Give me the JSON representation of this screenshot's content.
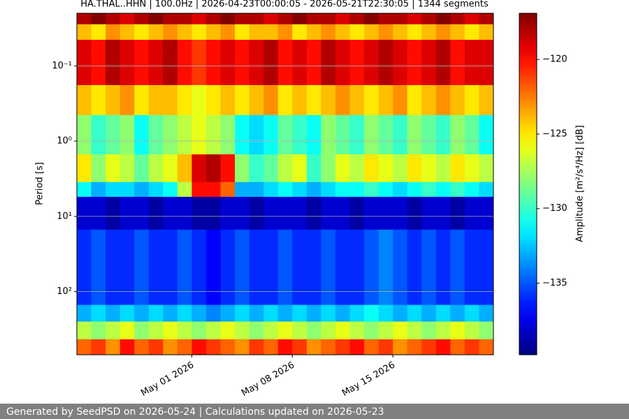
{
  "chart_data": {
    "type": "heatmap",
    "title": "HA.THAL..HHN | 100.0Hz | 2026-04-23T00:00:05 - 2026-05-21T22:30:05 | 1344 segments",
    "y_label": "Period [s]",
    "colorbar_label": "Amplitude [m²/s⁴/Hz] [dB]",
    "log_y": true,
    "y_inverted": true,
    "grid": true,
    "colormap": "jet",
    "x": [
      "2026-04-23",
      "2026-04-24",
      "2026-04-25",
      "2026-04-26",
      "2026-04-27",
      "2026-04-28",
      "2026-04-29",
      "2026-04-30",
      "2026-05-01",
      "2026-05-02",
      "2026-05-03",
      "2026-05-04",
      "2026-05-05",
      "2026-05-06",
      "2026-05-07",
      "2026-05-08",
      "2026-05-09",
      "2026-05-10",
      "2026-05-11",
      "2026-05-12",
      "2026-05-13",
      "2026-05-14",
      "2026-05-15",
      "2026-05-16",
      "2026-05-17",
      "2026-05-18",
      "2026-05-19",
      "2026-05-20",
      "2026-05-21"
    ],
    "xlim": [
      "2026-04-23",
      "2026-05-22"
    ],
    "xticks": [
      {
        "value": "2026-05-01",
        "label": "May 01 2026"
      },
      {
        "value": "2026-05-08",
        "label": "May 08 2026"
      },
      {
        "value": "2026-05-15",
        "label": "May 15 2026"
      }
    ],
    "y_edges": [
      0.02,
      0.028,
      0.045,
      0.18,
      0.45,
      1.5,
      3.5,
      5.5,
      15,
      150,
      250,
      430,
      690
    ],
    "ylim": [
      0.02,
      690
    ],
    "yticks": [
      {
        "value": 0.1,
        "label": "10⁻¹"
      },
      {
        "value": 1,
        "label": "10⁰"
      },
      {
        "value": 10,
        "label": "10¹"
      },
      {
        "value": 100,
        "label": "10²"
      }
    ],
    "clim": [
      -139.8,
      -116.9
    ],
    "cticks": [
      {
        "value": -135,
        "label": "−135"
      },
      {
        "value": -130,
        "label": "−130"
      },
      {
        "value": -125,
        "label": "−125"
      },
      {
        "value": -120,
        "label": "−120"
      }
    ],
    "z": [
      [
        -118,
        -117,
        -118,
        -119,
        -118,
        -117,
        -118,
        -118,
        -119,
        -118,
        -117,
        -118,
        -118,
        -119,
        -118,
        -117,
        -118,
        -118,
        -119,
        -118,
        -117,
        -118,
        -118,
        -119,
        -118,
        -117,
        -118,
        -119,
        -118
      ],
      [
        -124,
        -125,
        -123,
        -124,
        -125,
        -124,
        -123,
        -124,
        -125,
        -124,
        -123,
        -125,
        -124,
        -124,
        -123,
        -125,
        -124,
        -123,
        -124,
        -125,
        -124,
        -123,
        -124,
        -125,
        -124,
        -123,
        -124,
        -125,
        -124
      ],
      [
        -119,
        -120,
        -118,
        -119,
        -120,
        -119,
        -118,
        -120,
        -121,
        -120,
        -119,
        -120,
        -119,
        -118,
        -120,
        -119,
        -120,
        -118,
        -119,
        -120,
        -119,
        -118,
        -119,
        -120,
        -119,
        -118,
        -120,
        -119,
        -119
      ],
      [
        -124,
        -125,
        -124,
        -123,
        -125,
        -124,
        -124,
        -125,
        -126,
        -125,
        -124,
        -125,
        -124,
        -123,
        -125,
        -124,
        -125,
        -124,
        -123,
        -124,
        -125,
        -124,
        -123,
        -125,
        -124,
        -123,
        -124,
        -125,
        -124
      ],
      [
        -128,
        -130,
        -129,
        -128,
        -131,
        -129,
        -128,
        -127,
        -126,
        -127,
        -128,
        -131,
        -132,
        -131,
        -129,
        -130,
        -131,
        -128,
        -129,
        -130,
        -128,
        -129,
        -130,
        -128,
        -129,
        -130,
        -128,
        -129,
        -131
      ],
      [
        -125,
        -128,
        -126,
        -127,
        -129,
        -127,
        -126,
        -124,
        -119,
        -118,
        -120,
        -128,
        -130,
        -129,
        -127,
        -126,
        -130,
        -128,
        -126,
        -127,
        -125,
        -126,
        -127,
        -125,
        -126,
        -127,
        -125,
        -126,
        -127
      ],
      [
        -131,
        -133,
        -132,
        -132,
        -133,
        -132,
        -131,
        -127,
        -120,
        -120,
        -122,
        -133,
        -133,
        -132,
        -131,
        -132,
        -133,
        -132,
        -131,
        -131,
        -130,
        -131,
        -132,
        -131,
        -130,
        -131,
        -130,
        -131,
        -132
      ],
      [
        -138,
        -138,
        -139,
        -138,
        -138,
        -139,
        -138,
        -138,
        -139,
        -139,
        -138,
        -138,
        -139,
        -138,
        -138,
        -138,
        -139,
        -138,
        -138,
        -139,
        -138,
        -138,
        -138,
        -139,
        -138,
        -138,
        -139,
        -138,
        -138
      ],
      [
        -136,
        -135,
        -136,
        -136,
        -135,
        -136,
        -136,
        -135,
        -136,
        -137,
        -136,
        -135,
        -136,
        -136,
        -135,
        -136,
        -136,
        -135,
        -136,
        -136,
        -135,
        -134,
        -135,
        -136,
        -135,
        -136,
        -135,
        -136,
        -136
      ],
      [
        -133,
        -132,
        -133,
        -132,
        -133,
        -132,
        -133,
        -132,
        -133,
        -134,
        -133,
        -132,
        -133,
        -132,
        -133,
        -132,
        -133,
        -132,
        -133,
        -132,
        -131,
        -132,
        -133,
        -132,
        -133,
        -132,
        -133,
        -132,
        -133
      ],
      [
        -127,
        -128,
        -127,
        -126,
        -128,
        -127,
        -126,
        -127,
        -128,
        -127,
        -126,
        -127,
        -128,
        -127,
        -126,
        -127,
        -128,
        -127,
        -126,
        -127,
        -128,
        -127,
        -126,
        -127,
        -128,
        -127,
        -126,
        -127,
        -128
      ],
      [
        -122,
        -121,
        -123,
        -120,
        -122,
        -121,
        -123,
        -122,
        -120,
        -121,
        -122,
        -123,
        -121,
        -122,
        -120,
        -121,
        -123,
        -122,
        -121,
        -120,
        -122,
        -121,
        -123,
        -122,
        -121,
        -120,
        -122,
        -121,
        -122
      ]
    ]
  },
  "footer": "Generated by SeedPSD on 2026-05-24 | Calculations updated on 2026-05-23"
}
